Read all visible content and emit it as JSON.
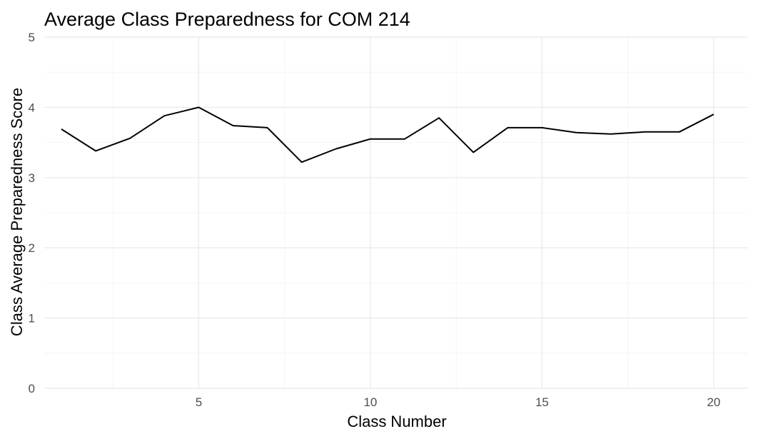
{
  "chart_data": {
    "type": "line",
    "title": "Average Class Preparedness for COM 214",
    "xlabel": "Class Number",
    "ylabel": "Class Average Preparedness Score",
    "xlim": [
      0.5,
      21
    ],
    "ylim": [
      0,
      5
    ],
    "x_ticks": [
      5,
      10,
      15,
      20
    ],
    "x_minor_ticks": [
      2.5,
      7.5,
      12.5,
      17.5
    ],
    "y_ticks": [
      0,
      1,
      2,
      3,
      4,
      5
    ],
    "y_minor_ticks": [
      0.5,
      1.5,
      2.5,
      3.5,
      4.5
    ],
    "grid": true,
    "x_tick_labels": [
      "5",
      "10",
      "15",
      "20"
    ],
    "y_tick_labels": [
      "0",
      "1",
      "2",
      "3",
      "4",
      "5"
    ],
    "series": [
      {
        "name": "Class Average Preparedness Score",
        "color": "#000000",
        "x": [
          1,
          2,
          3,
          4,
          5,
          6,
          7,
          8,
          9,
          10,
          11,
          12,
          13,
          14,
          15,
          16,
          17,
          18,
          19,
          20
        ],
        "values": [
          3.69,
          3.38,
          3.56,
          3.88,
          4.0,
          3.74,
          3.71,
          3.22,
          3.41,
          3.55,
          3.55,
          3.85,
          3.36,
          3.71,
          3.71,
          3.64,
          3.62,
          3.65,
          3.65,
          3.9
        ]
      }
    ]
  }
}
